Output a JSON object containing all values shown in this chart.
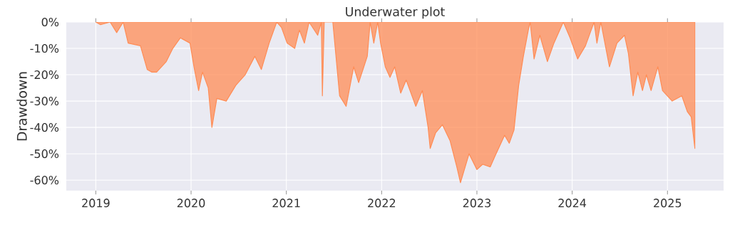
{
  "chart_data": {
    "type": "area",
    "title": "Underwater plot",
    "ylabel": "Drawdown",
    "xlim": [
      "2018-09-10",
      "2025-08-04"
    ],
    "xticks": [
      "2019",
      "2020",
      "2021",
      "2022",
      "2023",
      "2024",
      "2025"
    ],
    "ylim": [
      -64,
      0
    ],
    "yticks": [
      {
        "value": 0,
        "label": "0%"
      },
      {
        "value": -10,
        "label": "-10%"
      },
      {
        "value": -20,
        "label": "-20%"
      },
      {
        "value": -30,
        "label": "-30%"
      },
      {
        "value": -40,
        "label": "-40%"
      },
      {
        "value": -50,
        "label": "-50%"
      },
      {
        "value": -60,
        "label": "-60%"
      }
    ],
    "grid": true,
    "series": [
      {
        "color": "#ff8c55",
        "x": [
          "2019-01-01",
          "2019-01-19",
          "2019-02-25",
          "2019-03-22",
          "2019-04-16",
          "2019-05-05",
          "2019-06-21",
          "2019-07-17",
          "2019-08-04",
          "2019-08-22",
          "2019-09-28",
          "2019-10-23",
          "2019-11-21",
          "2019-12-28",
          "2020-01-12",
          "2020-01-30",
          "2020-02-14",
          "2020-03-07",
          "2020-03-21",
          "2020-04-09",
          "2020-05-15",
          "2020-06-21",
          "2020-07-27",
          "2020-09-02",
          "2020-09-27",
          "2020-10-27",
          "2020-11-25",
          "2020-12-13",
          "2021-01-04",
          "2021-02-02",
          "2021-02-20",
          "2021-03-11",
          "2021-03-29",
          "2021-05-01",
          "2021-05-15",
          "2021-05-19",
          "2021-05-26",
          "2021-06-28",
          "2021-07-24",
          "2021-08-18",
          "2021-09-16",
          "2021-10-05",
          "2021-11-07",
          "2021-11-18",
          "2021-12-02",
          "2021-12-17",
          "2021-12-28",
          "2022-01-15",
          "2022-02-02",
          "2022-02-20",
          "2022-03-15",
          "2022-04-05",
          "2022-05-12",
          "2022-06-06",
          "2022-06-28",
          "2022-07-06",
          "2022-07-27",
          "2022-08-22",
          "2022-09-20",
          "2022-10-16",
          "2022-10-30",
          "2022-12-02",
          "2023-01-01",
          "2023-01-23",
          "2023-02-21",
          "2023-03-11",
          "2023-04-17",
          "2023-05-05",
          "2023-05-23",
          "2023-06-10",
          "2023-06-28",
          "2023-07-17",
          "2023-07-24",
          "2023-08-08",
          "2023-08-30",
          "2023-09-28",
          "2023-10-23",
          "2023-11-28",
          "2023-12-24",
          "2024-01-22",
          "2024-02-21",
          "2024-03-25",
          "2024-04-05",
          "2024-04-20",
          "2024-05-23",
          "2024-06-21",
          "2024-07-20",
          "2024-08-04",
          "2024-08-22",
          "2024-09-09",
          "2024-09-27",
          "2024-10-12",
          "2024-10-30",
          "2024-11-25",
          "2024-12-13",
          "2025-01-19",
          "2025-02-25",
          "2025-03-18",
          "2025-04-02",
          "2025-04-16"
        ],
        "values": [
          0,
          -1,
          0,
          -4,
          0,
          -8,
          -9,
          -18,
          -19,
          -19,
          -15,
          -10,
          -6,
          -8,
          -17,
          -26,
          -19,
          -25,
          -40,
          -29,
          -30,
          -24,
          -20,
          -13,
          -18,
          -8,
          0,
          -2,
          -8,
          -10,
          -3,
          -8,
          0,
          -5,
          0,
          -28,
          0,
          0,
          -28,
          -32,
          -17,
          -23,
          -13,
          0,
          -8,
          0,
          -8,
          -17,
          -21,
          -17,
          -27,
          -22,
          -32,
          -26,
          -40,
          -48,
          -42,
          -39,
          -45,
          -55,
          -61,
          -50,
          -56,
          -54,
          -55,
          -51,
          -43,
          -46,
          -41,
          -24,
          -13,
          -3,
          0,
          -14,
          -5,
          -15,
          -8,
          0,
          -6,
          -14,
          -9,
          0,
          -8,
          0,
          -17,
          -8,
          -5,
          -12,
          -28,
          -19,
          -26,
          -20,
          -26,
          -17,
          -26,
          -30,
          -28,
          -34,
          -36,
          -48
        ]
      }
    ]
  }
}
